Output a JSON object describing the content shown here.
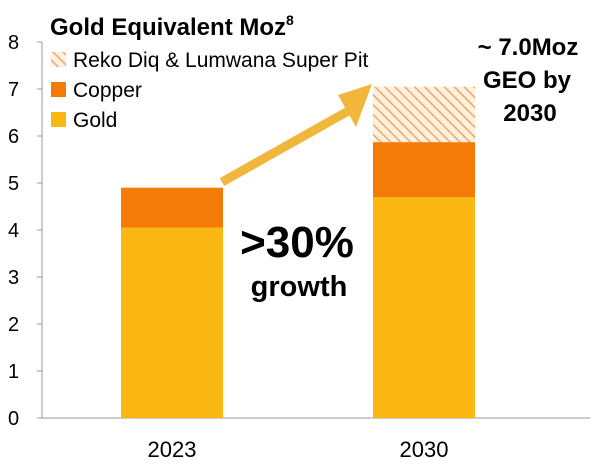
{
  "chart_data": {
    "type": "bar",
    "stacked": true,
    "title": "Gold Equivalent Moz",
    "title_superscript": "8",
    "categories": [
      "2023",
      "2030"
    ],
    "series": [
      {
        "name": "Gold",
        "values": [
          4.05,
          4.7
        ],
        "color": "#FBB813"
      },
      {
        "name": "Copper",
        "values": [
          0.85,
          1.17
        ],
        "color": "#F47B07"
      },
      {
        "name": "Reko Diq & Lumwana Super Pit",
        "values": [
          0,
          1.18
        ],
        "color": "#F6A65C",
        "pattern": "hatched"
      }
    ],
    "ylim": [
      0,
      8
    ],
    "yticks": [
      "0",
      "1",
      "2",
      "3",
      "4",
      "5",
      "6",
      "7",
      "8"
    ],
    "xlabel": "",
    "ylabel": "",
    "grid": false,
    "legend_position": "top-left",
    "annotations": {
      "growth_big": ">30%",
      "growth_small": "growth",
      "target_line1": "~ 7.0Moz",
      "target_line2": "GEO by",
      "target_line3": "2030"
    },
    "arrow_color": "#F0B73C"
  }
}
